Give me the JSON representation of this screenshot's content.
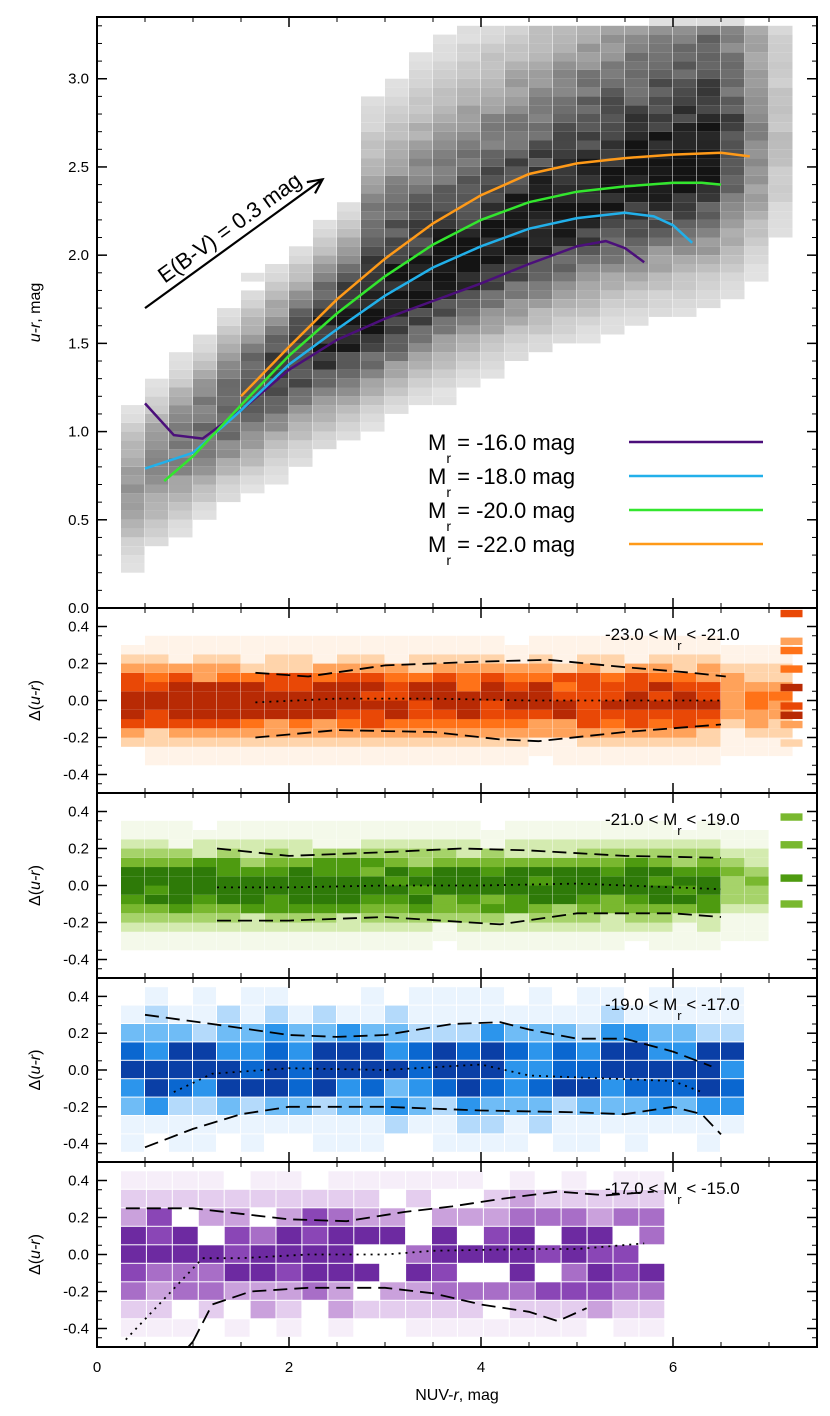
{
  "chart_data": [
    {
      "type": "heatmap",
      "id": "main-panel",
      "xlabel": "NUV-r, mag",
      "ylabel": "u-r, mag",
      "xlim": [
        0,
        7.5
      ],
      "ylim": [
        0,
        3.35
      ],
      "xticks": [
        "0",
        "2",
        "4",
        "6"
      ],
      "yticks": [
        "0.0",
        "0.5",
        "1.0",
        "1.5",
        "2.0",
        "2.5",
        "3.0"
      ],
      "colormap": "gray",
      "annotation": {
        "text": "E(B-V) = 0.3 mag",
        "from": [
          0.5,
          1.7
        ],
        "to": [
          2.35,
          2.43
        ]
      },
      "series": [
        {
          "name": "M_r = -16.0 mag",
          "color": "#4b0f7a",
          "x": [
            0.5,
            0.8,
            1.1,
            1.5,
            2.0,
            2.5,
            3.0,
            3.5,
            4.0,
            4.5,
            5.0,
            5.3,
            5.5,
            5.7
          ],
          "y": [
            1.16,
            0.98,
            0.96,
            1.12,
            1.35,
            1.52,
            1.64,
            1.74,
            1.84,
            1.95,
            2.05,
            2.08,
            2.04,
            1.96
          ]
        },
        {
          "name": "M_r = -18.0 mag",
          "color": "#22b0ea",
          "x": [
            0.5,
            1.0,
            1.5,
            2.0,
            2.5,
            3.0,
            3.5,
            4.0,
            4.5,
            5.0,
            5.5,
            5.8,
            6.0,
            6.2
          ],
          "y": [
            0.79,
            0.88,
            1.12,
            1.38,
            1.58,
            1.77,
            1.93,
            2.05,
            2.15,
            2.21,
            2.24,
            2.22,
            2.17,
            2.07
          ]
        },
        {
          "name": "M_r = -20.0 mag",
          "color": "#33e62e",
          "x": [
            0.7,
            1.0,
            1.5,
            2.0,
            2.5,
            3.0,
            3.5,
            4.0,
            4.5,
            5.0,
            5.5,
            6.0,
            6.3,
            6.5
          ],
          "y": [
            0.72,
            0.86,
            1.15,
            1.43,
            1.67,
            1.88,
            2.06,
            2.2,
            2.3,
            2.36,
            2.39,
            2.41,
            2.41,
            2.4
          ]
        },
        {
          "name": "M_r = -22.0 mag",
          "color": "#ff9a18",
          "x": [
            1.5,
            2.0,
            2.5,
            3.0,
            3.5,
            4.0,
            4.5,
            5.0,
            5.5,
            6.0,
            6.5,
            6.8
          ],
          "y": [
            1.2,
            1.48,
            1.75,
            1.98,
            2.18,
            2.34,
            2.46,
            2.52,
            2.55,
            2.57,
            2.58,
            2.56
          ]
        }
      ]
    },
    {
      "type": "heatmap",
      "id": "resid-1",
      "label": "-23.0 < M",
      "label_sub": "r",
      "label_tail": " < -21.0",
      "ylabel_prefix": "Δ(",
      "ylabel_var": "u-r",
      "ylabel_suffix": ")",
      "ylim": [
        -0.5,
        0.5
      ],
      "yticks": [
        "0.4",
        "0.2",
        "0.0",
        "-0.2",
        "-0.4"
      ],
      "colors": [
        "#fff3e8",
        "#ffd4ab",
        "#ffa25a",
        "#ff7218",
        "#e94806",
        "#b82a04"
      ],
      "upper": {
        "x": [
          1.65,
          2.2,
          3.0,
          4.0,
          4.7,
          5.5,
          6.2,
          6.55
        ],
        "y": [
          0.15,
          0.13,
          0.19,
          0.21,
          0.22,
          0.18,
          0.15,
          0.13
        ]
      },
      "median": {
        "x": [
          1.65,
          2.5,
          3.5,
          4.5,
          5.5,
          6.5
        ],
        "y": [
          -0.01,
          0.01,
          0.01,
          0.0,
          0.0,
          0.0
        ]
      },
      "lower": {
        "x": [
          1.65,
          2.5,
          3.5,
          4.2,
          4.6,
          5.5,
          6.5
        ],
        "y": [
          -0.2,
          -0.16,
          -0.17,
          -0.21,
          -0.22,
          -0.17,
          -0.13
        ]
      }
    },
    {
      "type": "heatmap",
      "id": "resid-2",
      "label": "-21.0 < M",
      "label_sub": "r",
      "label_tail": " < -19.0",
      "ylabel_prefix": "Δ(",
      "ylabel_var": "u-r",
      "ylabel_suffix": ")",
      "ylim": [
        -0.5,
        0.5
      ],
      "yticks": [
        "0.4",
        "0.2",
        "0.0",
        "-0.2",
        "-0.4"
      ],
      "colors": [
        "#f4f9ea",
        "#d4ebb0",
        "#a6d36a",
        "#79b82f",
        "#4e9b10",
        "#2e7a08"
      ],
      "upper": {
        "x": [
          1.25,
          2.0,
          3.0,
          3.8,
          4.5,
          5.5,
          6.5
        ],
        "y": [
          0.2,
          0.16,
          0.18,
          0.2,
          0.19,
          0.16,
          0.15
        ]
      },
      "median": {
        "x": [
          1.25,
          2.0,
          3.0,
          4.0,
          5.0,
          6.5
        ],
        "y": [
          -0.01,
          -0.01,
          0.0,
          0.0,
          0.01,
          -0.02
        ]
      },
      "lower": {
        "x": [
          1.25,
          2.0,
          3.0,
          4.2,
          5.0,
          6.0,
          6.5
        ],
        "y": [
          -0.19,
          -0.19,
          -0.17,
          -0.21,
          -0.15,
          -0.15,
          -0.17
        ]
      }
    },
    {
      "type": "heatmap",
      "id": "resid-3",
      "label": "-19.0 < M",
      "label_sub": "r",
      "label_tail": " < -17.0",
      "ylabel_prefix": "Δ(",
      "ylabel_var": "u-r",
      "ylabel_suffix": ")",
      "ylim": [
        -0.5,
        0.5
      ],
      "yticks": [
        "0.4",
        "0.2",
        "0.0",
        "-0.2",
        "-0.4"
      ],
      "colors": [
        "#eaf4fe",
        "#b4dafb",
        "#6fbcf6",
        "#2c95ec",
        "#0a67d0",
        "#0a3fa6"
      ],
      "upper": {
        "x": [
          0.5,
          1.2,
          2.0,
          2.5,
          3.0,
          3.7,
          4.2,
          4.5,
          5.0,
          5.5,
          6.0,
          6.4
        ],
        "y": [
          0.3,
          0.25,
          0.19,
          0.18,
          0.19,
          0.25,
          0.26,
          0.22,
          0.17,
          0.17,
          0.1,
          0.02
        ]
      },
      "median": {
        "x": [
          0.8,
          1.2,
          2.0,
          3.0,
          4.0,
          4.5,
          5.0,
          5.5,
          6.0,
          6.3
        ],
        "y": [
          -0.12,
          -0.02,
          0.01,
          0.0,
          0.03,
          -0.03,
          -0.04,
          -0.05,
          -0.06,
          -0.12
        ]
      },
      "lower": {
        "x": [
          0.5,
          1.0,
          1.5,
          2.0,
          3.0,
          4.0,
          5.0,
          5.5,
          6.0,
          6.3,
          6.5
        ],
        "y": [
          -0.42,
          -0.32,
          -0.24,
          -0.2,
          -0.2,
          -0.22,
          -0.23,
          -0.24,
          -0.2,
          -0.24,
          -0.35
        ]
      }
    },
    {
      "type": "heatmap",
      "id": "resid-4",
      "label": "-17.0 < M",
      "label_sub": "r",
      "label_tail": " < -15.0",
      "ylabel_prefix": "Δ(",
      "ylabel_var": "u-r",
      "ylabel_suffix": ")",
      "ylim": [
        -0.5,
        0.5
      ],
      "yticks": [
        "0.4",
        "0.2",
        "0.0",
        "-0.2",
        "-0.4"
      ],
      "xlabel_prefix": "NUV-",
      "xlabel_var": "r",
      "xlabel_suffix": ", mag",
      "xticks": [
        "0",
        "2",
        "4",
        "6"
      ],
      "colors": [
        "#f6eef9",
        "#e4cdee",
        "#caa1dc",
        "#a86ec7",
        "#8a46b6",
        "#6d2aa1"
      ],
      "upper": {
        "x": [
          0.3,
          1.0,
          1.5,
          2.0,
          2.6,
          3.2,
          3.7,
          4.2,
          4.8,
          5.3,
          5.8
        ],
        "y": [
          0.25,
          0.25,
          0.22,
          0.19,
          0.18,
          0.23,
          0.26,
          0.3,
          0.34,
          0.32,
          0.34
        ]
      },
      "median": {
        "x": [
          0.3,
          1.1,
          1.5,
          2.2,
          3.0,
          3.5,
          4.5,
          5.0,
          5.7
        ],
        "y": [
          -0.46,
          -0.02,
          -0.02,
          0.0,
          0.0,
          0.02,
          0.03,
          0.03,
          0.06
        ]
      },
      "lower": {
        "x": [
          1.0,
          1.2,
          1.6,
          2.2,
          3.0,
          3.5,
          4.0,
          4.5,
          4.8,
          5.1
        ],
        "y": [
          -0.47,
          -0.27,
          -0.2,
          -0.18,
          -0.18,
          -0.21,
          -0.27,
          -0.31,
          -0.36,
          -0.29
        ]
      },
      "extra_segment": {
        "x": [
          0.95,
          1.0
        ],
        "y": [
          -0.5,
          -0.47
        ]
      }
    }
  ]
}
